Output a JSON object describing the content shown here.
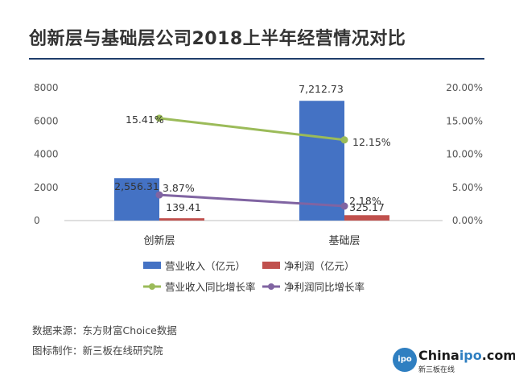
{
  "title": "创新层与基础层公司2018上半年经营情况对比",
  "footer": {
    "source": "数据来源：东方财富Choice数据",
    "made_by": "图标制作：新三板在线研究院"
  },
  "logo": {
    "badge": "ipo",
    "name_prefix": "China",
    "name_accent": "ipo",
    "name_suffix": ".com",
    "tagline": "新三板在线"
  },
  "colors": {
    "revenue": "#4472c4",
    "profit": "#c0504d",
    "revenue_growth": "#9bbb59",
    "profit_growth": "#8064a2"
  },
  "chart_data": {
    "type": "bar",
    "categories": [
      "创新层",
      "基础层"
    ],
    "series": [
      {
        "name": "营业收入（亿元）",
        "values": [
          2556.31,
          7212.73
        ],
        "labels": [
          "2,556.31",
          "7,212.73"
        ],
        "axis": "left",
        "kind": "bar",
        "color": "#4472c4"
      },
      {
        "name": "净利润（亿元）",
        "values": [
          139.41,
          325.17
        ],
        "labels": [
          "139.41",
          "325.17"
        ],
        "axis": "left",
        "kind": "bar",
        "color": "#c0504d"
      },
      {
        "name": "营业收入同比增长率",
        "values": [
          15.41,
          12.15
        ],
        "labels": [
          "15.41%",
          "12.15%"
        ],
        "axis": "right",
        "kind": "line",
        "color": "#9bbb59"
      },
      {
        "name": "净利润同比增长率",
        "values": [
          3.87,
          2.18
        ],
        "labels": [
          "3.87%",
          "2.18%"
        ],
        "axis": "right",
        "kind": "line",
        "color": "#8064a2"
      }
    ],
    "y_left": {
      "ticks": [
        "8000",
        "6000",
        "4000",
        "2000",
        "0"
      ],
      "range": [
        0,
        8000
      ]
    },
    "y_right": {
      "ticks": [
        "20.00%",
        "15.00%",
        "10.00%",
        "5.00%",
        "0.00%"
      ],
      "range": [
        0,
        20
      ]
    },
    "legend_position": "bottom",
    "grid": false
  }
}
